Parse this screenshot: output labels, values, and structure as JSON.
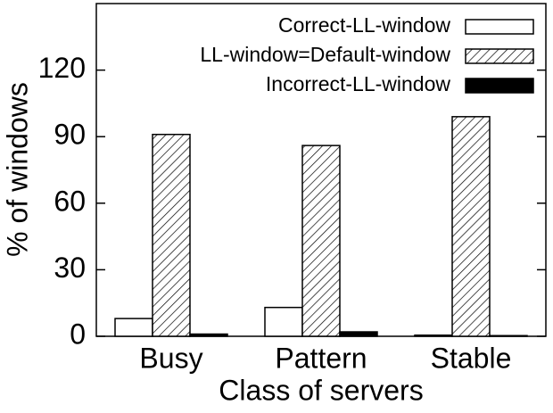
{
  "chart_data": {
    "type": "bar",
    "xlabel": "Class of servers",
    "ylabel": "% of windows",
    "categories": [
      "Busy",
      "Pattern",
      "Stable"
    ],
    "series": [
      {
        "name": "Correct-LL-window",
        "color": "#ffffff",
        "values": [
          8,
          13,
          0.5
        ]
      },
      {
        "name": "LL-window=Default-window",
        "color": "#ffffff",
        "hatch": true,
        "values": [
          91,
          86,
          99
        ]
      },
      {
        "name": "Incorrect-LL-window",
        "color": "#000000",
        "values": [
          1,
          2,
          0.3
        ]
      }
    ],
    "ylim": [
      0,
      150
    ],
    "yticks": [
      0,
      30,
      60,
      90,
      120
    ],
    "legend": "top-right"
  }
}
